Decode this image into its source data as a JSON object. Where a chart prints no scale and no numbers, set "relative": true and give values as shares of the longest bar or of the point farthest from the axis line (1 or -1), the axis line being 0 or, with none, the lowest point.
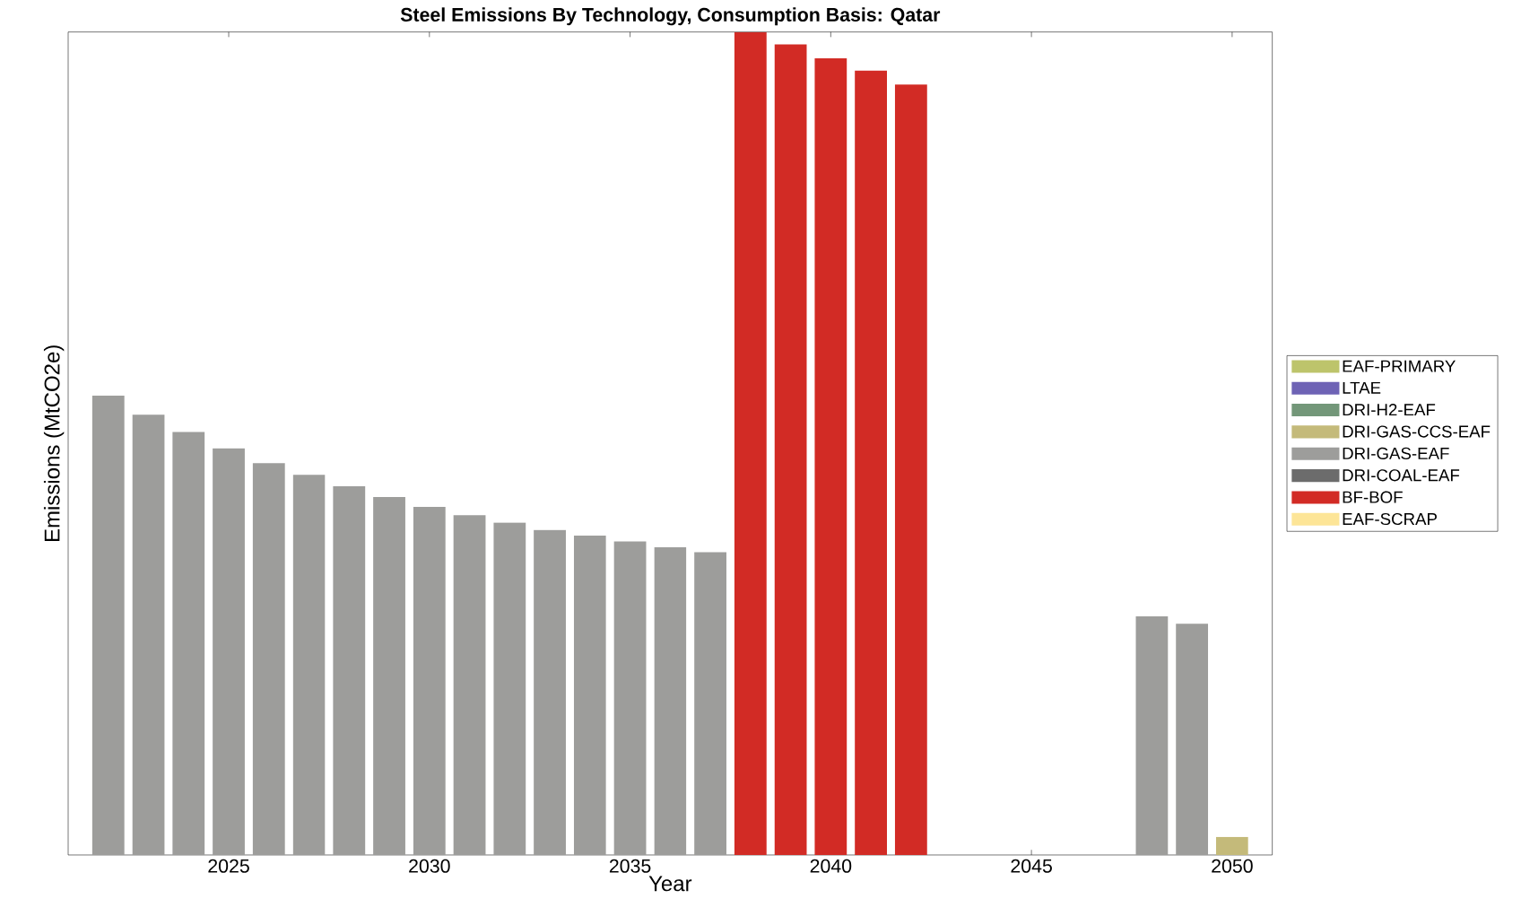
{
  "chart_data": {
    "type": "bar",
    "title": "Steel Emissions By Technology, Consumption Basis: Qatar",
    "xlabel": "Year",
    "ylabel": "Emissions (MtCO2e)",
    "relative": true,
    "legend": "right",
    "x": [
      2022,
      2023,
      2024,
      2025,
      2026,
      2027,
      2028,
      2029,
      2030,
      2031,
      2032,
      2033,
      2034,
      2035,
      2036,
      2037,
      2038,
      2039,
      2040,
      2041,
      2042,
      2043,
      2044,
      2045,
      2046,
      2047,
      2048,
      2049,
      2050
    ],
    "xlim": [
      2021,
      2051
    ],
    "xticks": [
      2025,
      2030,
      2035,
      2040,
      2045,
      2050
    ],
    "series": [
      {
        "name": "EAF-PRIMARY",
        "color": "#bdc46b",
        "values": [
          null,
          null,
          null,
          null,
          null,
          null,
          null,
          null,
          null,
          null,
          null,
          null,
          null,
          null,
          null,
          null,
          null,
          null,
          null,
          null,
          null,
          null,
          null,
          null,
          null,
          null,
          null,
          null,
          null
        ]
      },
      {
        "name": "LTAE",
        "color": "#6e63b5",
        "values": [
          null,
          null,
          null,
          null,
          null,
          null,
          null,
          null,
          null,
          null,
          null,
          null,
          null,
          null,
          null,
          null,
          null,
          null,
          null,
          null,
          null,
          null,
          null,
          null,
          null,
          null,
          null,
          null,
          null
        ]
      },
      {
        "name": "DRI-H2-EAF",
        "color": "#739779",
        "values": [
          null,
          null,
          null,
          null,
          null,
          null,
          null,
          null,
          null,
          null,
          null,
          null,
          null,
          null,
          null,
          null,
          null,
          null,
          null,
          null,
          null,
          null,
          null,
          null,
          null,
          null,
          null,
          null,
          null
        ]
      },
      {
        "name": "DRI-GAS-CCS-EAF",
        "color": "#c4ba7a",
        "values": [
          null,
          null,
          null,
          null,
          null,
          null,
          null,
          null,
          null,
          null,
          null,
          null,
          null,
          null,
          null,
          null,
          null,
          null,
          null,
          null,
          null,
          null,
          null,
          null,
          null,
          null,
          null,
          null,
          0.022
        ]
      },
      {
        "name": "DRI-GAS-EAF",
        "color": "#9d9d9b",
        "values": [
          0.558,
          0.535,
          0.514,
          0.494,
          0.476,
          0.462,
          0.448,
          0.435,
          0.423,
          0.413,
          0.404,
          0.395,
          0.388,
          0.381,
          0.374,
          0.368,
          null,
          null,
          null,
          null,
          null,
          null,
          null,
          null,
          null,
          null,
          0.29,
          0.281,
          null
        ]
      },
      {
        "name": "DRI-COAL-EAF",
        "color": "#6c6c6c",
        "values": [
          null,
          null,
          null,
          null,
          null,
          null,
          null,
          null,
          null,
          null,
          null,
          null,
          null,
          null,
          null,
          null,
          null,
          null,
          null,
          null,
          null,
          null,
          null,
          null,
          null,
          null,
          null,
          null,
          null
        ]
      },
      {
        "name": "BF-BOF",
        "color": "#d22b25",
        "values": [
          null,
          null,
          null,
          null,
          null,
          null,
          null,
          null,
          null,
          null,
          null,
          null,
          null,
          null,
          null,
          null,
          1,
          0.985,
          0.968,
          0.953,
          0.936,
          null,
          null,
          null,
          null,
          null,
          null,
          null,
          null
        ]
      },
      {
        "name": "EAF-SCRAP",
        "color": "#fde597",
        "values": [
          null,
          null,
          null,
          null,
          null,
          null,
          null,
          null,
          null,
          null,
          null,
          null,
          null,
          null,
          null,
          null,
          null,
          null,
          null,
          null,
          null,
          null,
          null,
          null,
          null,
          null,
          null,
          null,
          null
        ]
      }
    ]
  }
}
